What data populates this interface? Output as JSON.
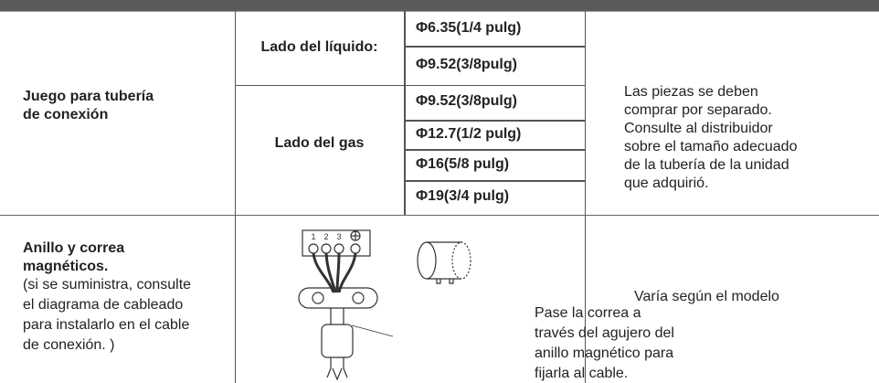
{
  "table": {
    "rows": [
      {
        "label": [
          "Juego para tubería",
          "de conexión"
        ],
        "groups": [
          {
            "side": "Lado del líquido:",
            "sizes": [
              "Φ6.35(1/4 pulg)",
              "Φ9.52(3/8pulg)"
            ]
          },
          {
            "side": "Lado del gas",
            "sizes": [
              "Φ9.52(3/8pulg)",
              "Φ12.7(1/2 pulg)",
              "Φ16(5/8 pulg)",
              "Φ19(3/4 pulg)"
            ]
          }
        ],
        "note": [
          "Las piezas se deben",
          "comprar por separado.",
          "Consulte al distribuidor",
          "sobre el tamaño adecuado",
          "de la tubería de la unidad",
          "que adquirió."
        ]
      },
      {
        "label": {
          "title": [
            "Anillo y correa",
            "magnéticos."
          ],
          "detail": [
            "(si se suministra, consulte",
            "el diagrama de cableado",
            "para instalarlo en el cable",
            "de conexión. )"
          ]
        },
        "diagram": {
          "terminals": [
            "1",
            "2",
            "3"
          ],
          "caption": [
            "Pase la correa a",
            "través del agujero del",
            "anillo magnético para",
            "fijarla al cable."
          ]
        },
        "note": "Varía según el modelo"
      }
    ]
  }
}
